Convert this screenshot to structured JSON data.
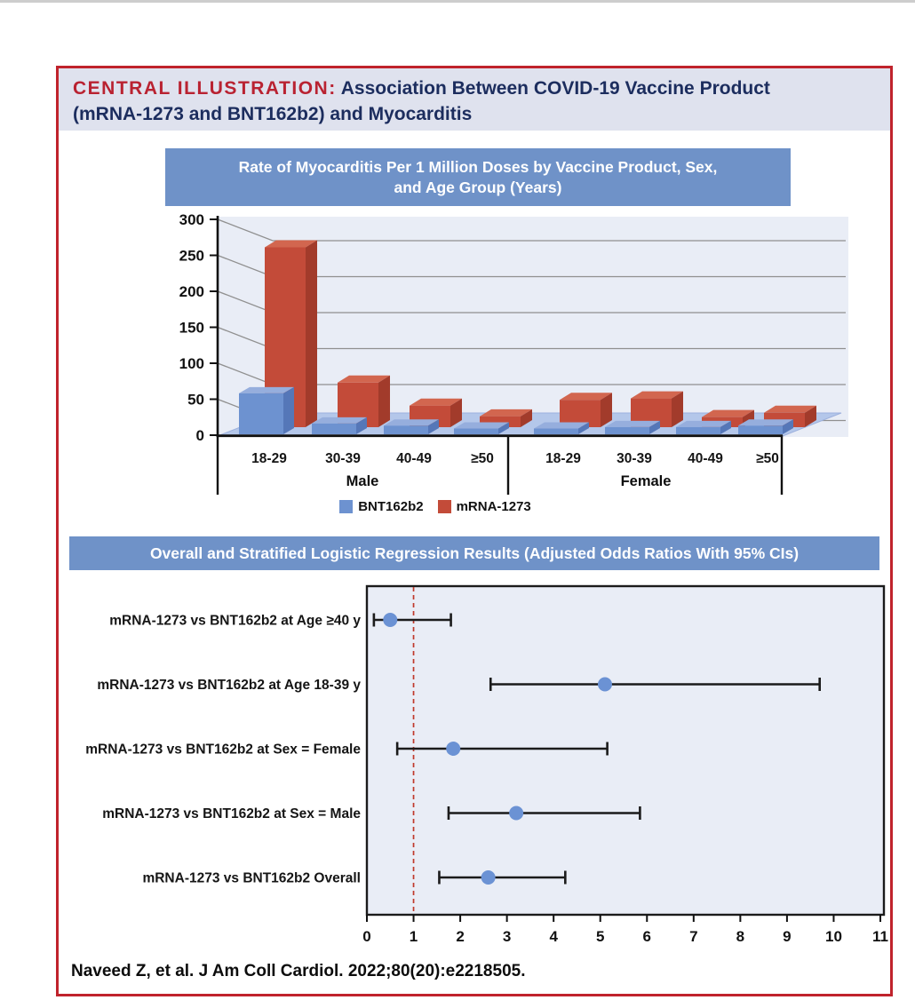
{
  "header": {
    "label": "CENTRAL ILLUSTRATION:",
    "title_line1": " Association Between COVID-19 Vaccine Product",
    "title_line2": "(mRNA-1273 and BNT162b2) and Myocarditis"
  },
  "bar_banner": {
    "line1": "Rate of Myocarditis Per 1 Million Doses by Vaccine Product, Sex,",
    "line2": "and Age Group (Years)"
  },
  "forest_banner": "Overall and Stratified Logistic Regression Results (Adjusted Odds Ratios With 95% CIs)",
  "legend": [
    {
      "label": "BNT162b2",
      "color": "#6d92d0"
    },
    {
      "label": "mRNA-1273",
      "color": "#c34b39"
    }
  ],
  "citation": "Naveed Z, et al. J Am Coll Cardiol. 2022;80(20):e2218505.",
  "colors": {
    "accent_red": "#c0232c",
    "navy": "#1c2d5e",
    "banner_blue": "#6f92c8",
    "plot_background": "#e9edf6",
    "bar_blue": "#6d92d0",
    "bar_red": "#c34b39",
    "forest_point_blue": "#6b92d4",
    "reference_line_red": "#c0392b"
  },
  "chart_data": [
    {
      "type": "bar",
      "style": "3d-grouped",
      "title": "Rate of Myocarditis Per 1 Million Doses by Vaccine Product, Sex, and Age Group (Years)",
      "groups": [
        {
          "name": "Male",
          "categories": [
            "18-29",
            "30-39",
            "40-49",
            "≥50"
          ]
        },
        {
          "name": "Female",
          "categories": [
            "18-29",
            "30-39",
            "40-49",
            "≥50"
          ]
        }
      ],
      "series": [
        {
          "name": "BNT162b2",
          "color": "#6d92d0",
          "values": {
            "Male": [
              57,
              15,
              12,
              8
            ],
            "Female": [
              8,
              10,
              10,
              12
            ]
          }
        },
        {
          "name": "mRNA-1273",
          "color": "#c34b39",
          "values": {
            "Male": [
              250,
              62,
              30,
              15
            ],
            "Female": [
              38,
              40,
              14,
              20
            ]
          }
        }
      ],
      "ylim": [
        0,
        300
      ],
      "yticks": [
        0,
        50,
        100,
        150,
        200,
        250,
        300
      ],
      "grid": true,
      "legend_position": "bottom"
    },
    {
      "type": "scatter",
      "subtype": "forest",
      "title": "Overall and Stratified Logistic Regression Results (Adjusted Odds Ratios With 95% CIs)",
      "xlim": [
        0,
        11
      ],
      "xticks": [
        0,
        1,
        2,
        3,
        4,
        5,
        6,
        7,
        8,
        9,
        10,
        11
      ],
      "reference_line": 1,
      "rows": [
        {
          "label": "mRNA-1273 vs BNT162b2 at Age ≥40 y",
          "estimate": 0.5,
          "ci": [
            0.15,
            1.8
          ]
        },
        {
          "label": "mRNA-1273 vs BNT162b2 at Age 18-39 y",
          "estimate": 5.1,
          "ci": [
            2.65,
            9.7
          ]
        },
        {
          "label": "mRNA-1273 vs BNT162b2 at Sex = Female",
          "estimate": 1.85,
          "ci": [
            0.65,
            5.15
          ]
        },
        {
          "label": "mRNA-1273 vs BNT162b2 at Sex = Male",
          "estimate": 3.2,
          "ci": [
            1.75,
            5.85
          ]
        },
        {
          "label": "mRNA-1273 vs BNT162b2 Overall",
          "estimate": 2.6,
          "ci": [
            1.55,
            4.25
          ]
        }
      ]
    }
  ]
}
